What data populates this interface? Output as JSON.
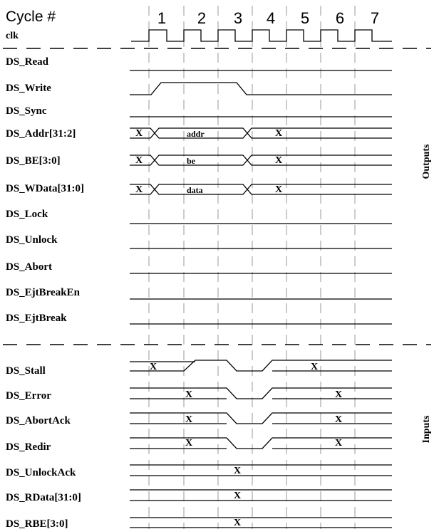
{
  "header": {
    "cycle_title": "Cycle #",
    "cycle_numbers": [
      "1",
      "2",
      "3",
      "4",
      "5",
      "6",
      "7"
    ],
    "clock_label": "clk"
  },
  "groups": {
    "outputs_label": "Outputs",
    "inputs_label": "Inputs"
  },
  "outputs": [
    {
      "name": "DS_Read"
    },
    {
      "name": "DS_Write"
    },
    {
      "name": "DS_Sync"
    },
    {
      "name": "DS_Addr[31:2]",
      "valid_value": "addr",
      "invalid_value": "X"
    },
    {
      "name": "DS_BE[3:0]",
      "valid_value": "be",
      "invalid_value": "X"
    },
    {
      "name": "DS_WData[31:0]",
      "valid_value": "data",
      "invalid_value": "X"
    },
    {
      "name": "DS_Lock"
    },
    {
      "name": "DS_Unlock"
    },
    {
      "name": "DS_Abort"
    },
    {
      "name": "DS_EjtBreakEn"
    },
    {
      "name": "DS_EjtBreak"
    }
  ],
  "inputs": [
    {
      "name": "DS_Stall",
      "value": "X"
    },
    {
      "name": "DS_Error",
      "value": "X"
    },
    {
      "name": "DS_AbortAck",
      "value": "X"
    },
    {
      "name": "DS_Redir",
      "value": "X"
    },
    {
      "name": "DS_UnlockAck",
      "value": "X"
    },
    {
      "name": "DS_RData[31:0]",
      "value": "X"
    },
    {
      "name": "DS_RBE[3:0]",
      "value": "X"
    }
  ]
}
